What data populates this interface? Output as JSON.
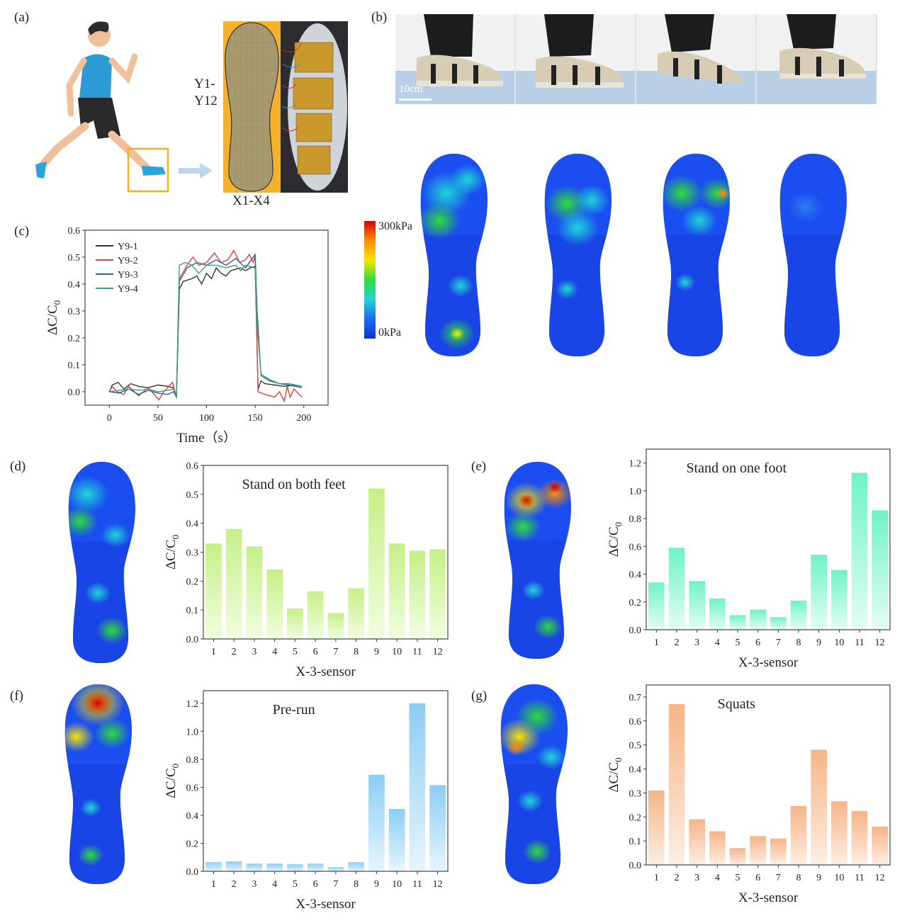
{
  "panels": {
    "a": "(a)",
    "b": "(b)",
    "c": "(c)",
    "d": "(d)",
    "e": "(e)",
    "f": "(f)",
    "g": "(g)"
  },
  "insole": {
    "y_label_1": "Y1-",
    "y_label_2": "Y12",
    "x_label": "X1-X4"
  },
  "photos": {
    "scale_bar": "10cm"
  },
  "colorbar": {
    "max": "300kPa",
    "min": "0kPa",
    "colors": [
      "#d40000",
      "#ff8c00",
      "#f5e600",
      "#2fdc3a",
      "#1fd6d6",
      "#1a6cf0",
      "#1030d8"
    ]
  },
  "chart_data": [
    {
      "id": "c",
      "type": "line",
      "title": "",
      "xlabel": "Time（s）",
      "ylabel": "ΔC/C",
      "ylabel_sub": "0",
      "xlim": [
        -25,
        225
      ],
      "ylim": [
        -0.05,
        0.6
      ],
      "xticks": [
        "0",
        "50",
        "100",
        "150",
        "200"
      ],
      "yticks": [
        "0.0",
        "0.1",
        "0.2",
        "0.3",
        "0.4",
        "0.5",
        "0.6"
      ],
      "legend_position": "top-left",
      "series": [
        {
          "name": "Y9-1",
          "color": "#333333",
          "points": [
            [
              0,
              0
            ],
            [
              3,
              0.025
            ],
            [
              9,
              0.035
            ],
            [
              15,
              0.01
            ],
            [
              22,
              0.03
            ],
            [
              30,
              0.02
            ],
            [
              40,
              0.015
            ],
            [
              50,
              0.025
            ],
            [
              60,
              0.02
            ],
            [
              66,
              0.015
            ],
            [
              69,
              -0.02
            ],
            [
              72,
              0.38
            ],
            [
              76,
              0.41
            ],
            [
              85,
              0.42
            ],
            [
              90,
              0.43
            ],
            [
              95,
              0.4
            ],
            [
              100,
              0.44
            ],
            [
              105,
              0.42
            ],
            [
              110,
              0.46
            ],
            [
              115,
              0.44
            ],
            [
              120,
              0.43
            ],
            [
              125,
              0.45
            ],
            [
              130,
              0.455
            ],
            [
              135,
              0.46
            ],
            [
              140,
              0.45
            ],
            [
              145,
              0.46
            ],
            [
              150,
              0.465
            ],
            [
              153,
              0.01
            ],
            [
              156,
              0.04
            ],
            [
              160,
              0.03
            ],
            [
              170,
              0.025
            ],
            [
              180,
              0.02
            ],
            [
              190,
              0.025
            ],
            [
              198,
              0.02
            ]
          ]
        },
        {
          "name": "Y9-2",
          "color": "#e0413e",
          "points": [
            [
              0,
              0
            ],
            [
              3,
              0.02
            ],
            [
              8,
              0
            ],
            [
              15,
              -0.01
            ],
            [
              20,
              0.02
            ],
            [
              30,
              -0.015
            ],
            [
              40,
              0.015
            ],
            [
              45,
              -0.005
            ],
            [
              51,
              -0.03
            ],
            [
              56,
              0
            ],
            [
              65,
              0.035
            ],
            [
              69,
              -0.02
            ],
            [
              72,
              0.42
            ],
            [
              80,
              0.47
            ],
            [
              86,
              0.5
            ],
            [
              92,
              0.47
            ],
            [
              100,
              0.48
            ],
            [
              108,
              0.515
            ],
            [
              115,
              0.48
            ],
            [
              122,
              0.49
            ],
            [
              128,
              0.525
            ],
            [
              134,
              0.48
            ],
            [
              140,
              0.49
            ],
            [
              144,
              0.51
            ],
            [
              148,
              0.48
            ],
            [
              150,
              0.505
            ],
            [
              153,
              0
            ],
            [
              160,
              -0.01
            ],
            [
              170,
              -0.02
            ],
            [
              175,
              0
            ],
            [
              180,
              -0.035
            ],
            [
              183,
              0.02
            ],
            [
              186,
              -0.02
            ],
            [
              190,
              0.01
            ],
            [
              198,
              -0.02
            ]
          ]
        },
        {
          "name": "Y9-3",
          "color": "#2f5fa8",
          "points": [
            [
              0,
              0
            ],
            [
              10,
              -0.005
            ],
            [
              20,
              0.01
            ],
            [
              30,
              -0.01
            ],
            [
              40,
              0.005
            ],
            [
              50,
              -0.005
            ],
            [
              60,
              -0.01
            ],
            [
              66,
              0
            ],
            [
              69,
              -0.02
            ],
            [
              72,
              0.41
            ],
            [
              80,
              0.46
            ],
            [
              90,
              0.48
            ],
            [
              100,
              0.47
            ],
            [
              110,
              0.49
            ],
            [
              120,
              0.47
            ],
            [
              130,
              0.495
            ],
            [
              140,
              0.46
            ],
            [
              146,
              0.49
            ],
            [
              150,
              0.51
            ],
            [
              152,
              0.3
            ],
            [
              156,
              0.06
            ],
            [
              165,
              0.04
            ],
            [
              175,
              0.03
            ],
            [
              185,
              0.025
            ],
            [
              198,
              0.015
            ]
          ]
        },
        {
          "name": "Y9-4",
          "color": "#3aa37a",
          "points": [
            [
              0,
              0
            ],
            [
              10,
              0.005
            ],
            [
              20,
              0.01
            ],
            [
              30,
              0.005
            ],
            [
              40,
              0.01
            ],
            [
              50,
              0
            ],
            [
              60,
              0.005
            ],
            [
              66,
              0.01
            ],
            [
              69,
              -0.02
            ],
            [
              72,
              0.47
            ],
            [
              78,
              0.48
            ],
            [
              85,
              0.47
            ],
            [
              92,
              0.44
            ],
            [
              100,
              0.47
            ],
            [
              110,
              0.47
            ],
            [
              120,
              0.46
            ],
            [
              130,
              0.47
            ],
            [
              135,
              0.45
            ],
            [
              140,
              0.47
            ],
            [
              150,
              0.46
            ],
            [
              152,
              0.25
            ],
            [
              156,
              0.065
            ],
            [
              165,
              0.045
            ],
            [
              175,
              0.03
            ],
            [
              185,
              0.03
            ],
            [
              198,
              0.02
            ]
          ]
        }
      ]
    },
    {
      "id": "d",
      "type": "bar",
      "title": "Stand on both feet",
      "xlabel": "X-3-sensor",
      "ylabel": "ΔC/C",
      "ylabel_sub": "0",
      "categories": [
        "1",
        "2",
        "3",
        "4",
        "5",
        "6",
        "7",
        "8",
        "9",
        "10",
        "11",
        "12"
      ],
      "values": [
        0.33,
        0.38,
        0.32,
        0.24,
        0.105,
        0.165,
        0.09,
        0.175,
        0.52,
        0.33,
        0.305,
        0.31
      ],
      "ylim": [
        0,
        0.6
      ],
      "yticks": [
        "0.0",
        "0.1",
        "0.2",
        "0.3",
        "0.4",
        "0.5",
        "0.6"
      ],
      "ytick_values": [
        0,
        0.1,
        0.2,
        0.3,
        0.4,
        0.5,
        0.6
      ],
      "color": "#c6ef86",
      "color_light": "#f1fde0"
    },
    {
      "id": "e",
      "type": "bar",
      "title": "Stand on one foot",
      "xlabel": "X-3-sensor",
      "ylabel": "ΔC/C",
      "ylabel_sub": "0",
      "categories": [
        "1",
        "2",
        "3",
        "4",
        "5",
        "6",
        "7",
        "8",
        "9",
        "10",
        "11",
        "12"
      ],
      "values": [
        0.34,
        0.59,
        0.35,
        0.225,
        0.105,
        0.145,
        0.09,
        0.21,
        0.54,
        0.43,
        1.13,
        0.86
      ],
      "ylim": [
        0,
        1.3
      ],
      "yticks": [
        "0.0",
        "0.2",
        "0.4",
        "0.6",
        "0.8",
        "1.0",
        "1.2"
      ],
      "ytick_values": [
        0,
        0.2,
        0.4,
        0.6,
        0.8,
        1.0,
        1.2
      ],
      "color": "#6ff2c6",
      "color_light": "#e4fdf4"
    },
    {
      "id": "f",
      "type": "bar",
      "title": "Pre-run",
      "xlabel": "X-3-sensor",
      "ylabel": "ΔC/C",
      "ylabel_sub": "0",
      "categories": [
        "1",
        "2",
        "3",
        "4",
        "5",
        "6",
        "7",
        "8",
        "9",
        "10",
        "11",
        "12"
      ],
      "values": [
        0.065,
        0.07,
        0.055,
        0.055,
        0.05,
        0.055,
        0.03,
        0.065,
        0.69,
        0.445,
        1.2,
        0.615
      ],
      "ylim": [
        0,
        1.29
      ],
      "yticks": [
        "0.0",
        "0.2",
        "0.4",
        "0.6",
        "0.8",
        "1.0",
        "1.2"
      ],
      "ytick_values": [
        0,
        0.2,
        0.4,
        0.6,
        0.8,
        1.0,
        1.2
      ],
      "color": "#8ccdf5",
      "color_light": "#e6f5fd"
    },
    {
      "id": "g",
      "type": "bar",
      "title": "Squats",
      "xlabel": "X-3-sensor",
      "ylabel": "ΔC/C",
      "ylabel_sub": "0",
      "categories": [
        "1",
        "2",
        "3",
        "4",
        "5",
        "6",
        "7",
        "8",
        "9",
        "10",
        "11",
        "12"
      ],
      "values": [
        0.31,
        0.67,
        0.19,
        0.14,
        0.07,
        0.12,
        0.11,
        0.245,
        0.48,
        0.265,
        0.225,
        0.16
      ],
      "ylim": [
        0,
        0.75
      ],
      "yticks": [
        "0.0",
        "0.1",
        "0.2",
        "0.3",
        "0.4",
        "0.5",
        "0.6",
        "0.7"
      ],
      "ytick_values": [
        0,
        0.1,
        0.2,
        0.3,
        0.4,
        0.5,
        0.6,
        0.7
      ],
      "color": "#f6b487",
      "color_light": "#fdeee3"
    }
  ]
}
